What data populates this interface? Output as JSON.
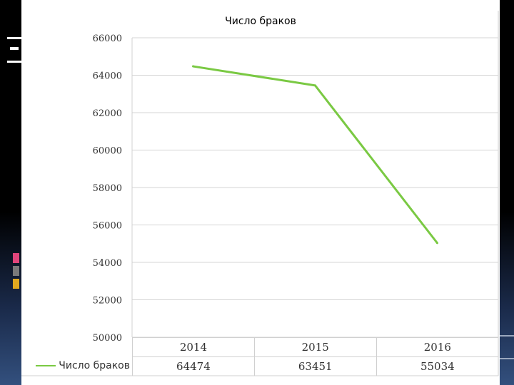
{
  "decor": {
    "bar_colors": [
      "#e0457b",
      "#7a7a7a",
      "#e0a81f"
    ]
  },
  "chart_data": {
    "type": "line",
    "title": "Число браков",
    "categories": [
      "2014",
      "2015",
      "2016"
    ],
    "series": [
      {
        "name": "Число браков",
        "values": [
          64474,
          63451,
          55034
        ],
        "value_labels": [
          "64474",
          "63451",
          "55034"
        ],
        "color": "#7ac943"
      }
    ],
    "ylim": [
      50000,
      66000
    ],
    "yticks": [
      50000,
      52000,
      54000,
      56000,
      58000,
      60000,
      62000,
      64000,
      66000
    ],
    "ytick_labels": [
      "50000",
      "52000",
      "54000",
      "56000",
      "58000",
      "60000",
      "62000",
      "64000",
      "66000"
    ],
    "grid": true,
    "data_table": true
  }
}
